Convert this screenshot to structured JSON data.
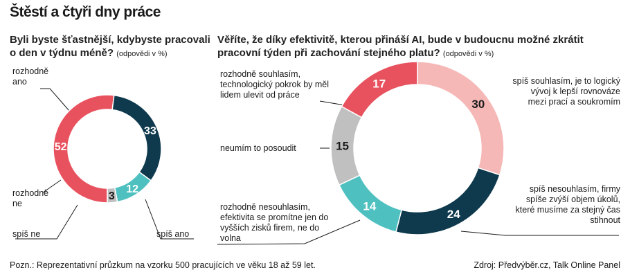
{
  "title": "Štěstí a čtyři dny práce",
  "chart_data": [
    {
      "type": "pie",
      "title": "Byli byste šťastnější, kdybyste pracovali o den v týdnu méně?",
      "note": "(odpovědi v %)",
      "slices": [
        {
          "label": "rozhodně ano",
          "value": 52,
          "color": "#e8525e",
          "label_color": "#ffffff"
        },
        {
          "label": "spíš ano",
          "value": 33,
          "color": "#0f3a4e",
          "label_color": "#ffffff"
        },
        {
          "label": "spíš ne",
          "value": 12,
          "color": "#4fc0c0",
          "label_color": "#ffffff"
        },
        {
          "label": "rozhodně ne",
          "value": 3,
          "color": "#c0c0c0",
          "label_color": "#1a1a1a"
        }
      ]
    },
    {
      "type": "pie",
      "title": "Věříte, že díky efektivitě, kterou přináší AI, bude v budoucnu možné zkrátit pracovní týden při zachování stejného platu?",
      "note": "(odpovědi v %)",
      "slices": [
        {
          "label": "spíš souhlasím, je to logický vývoj k lepší rovnováze mezi prací a soukromím",
          "value": 30,
          "color": "#f5b8b6",
          "label_color": "#1a1a1a"
        },
        {
          "label": "spíš nesouhlasím, firmy spíše zvýší objem úkolů, které musíme za stejný čas stihnout",
          "value": 24,
          "color": "#0f3a4e",
          "label_color": "#ffffff"
        },
        {
          "label": "rozhodně nesouhlasím, efektivita se promítne jen do vyšších zisků firem, ne do volna",
          "value": 14,
          "color": "#4fc0c0",
          "label_color": "#ffffff"
        },
        {
          "label": "neumím to posoudit",
          "value": 15,
          "color": "#c0c0c0",
          "label_color": "#1a1a1a"
        },
        {
          "label": "rozhodně souhlasím, technologický pokrok by měl lidem ulevit od práce",
          "value": 17,
          "color": "#e8525e",
          "label_color": "#ffffff"
        }
      ]
    }
  ],
  "footer": {
    "note": "Pozn.: Reprezentativní průzkum na vzorku 500 pracujících ve věku 18 až 59 let.",
    "source": "Zdroj: Předvýběr.cz, Talk Online Panel"
  }
}
